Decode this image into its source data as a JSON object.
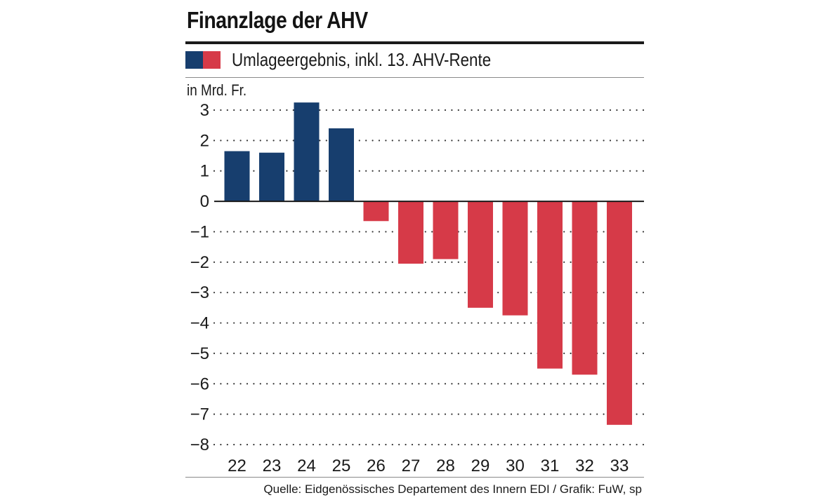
{
  "header": {
    "title": "Finanzlage der AHV"
  },
  "legend": {
    "label": "Umlageergebnis, inkl. 13. AHV-Rente"
  },
  "colors": {
    "positive": "#173e6e",
    "negative": "#d63a48",
    "grid": "#333333",
    "text": "#1a1a1a"
  },
  "chart_data": {
    "type": "bar",
    "title": "Finanzlage der AHV",
    "subtitle": "Umlageergebnis, inkl. 13. AHV-Rente",
    "ylabel": "in Mrd. Fr.",
    "xlabel": "",
    "categories": [
      "22",
      "23",
      "24",
      "25",
      "26",
      "27",
      "28",
      "29",
      "30",
      "31",
      "32",
      "33"
    ],
    "values": [
      1.65,
      1.6,
      3.25,
      2.4,
      -0.65,
      -2.05,
      -1.9,
      -3.5,
      -3.75,
      -5.5,
      -5.7,
      -7.35
    ],
    "ylim": [
      -8,
      3
    ],
    "yticks": [
      3,
      2,
      1,
      0,
      -1,
      -2,
      -3,
      -4,
      -5,
      -6,
      -7,
      -8
    ],
    "ytick_labels": [
      "3",
      "2",
      "1",
      "0",
      "−1",
      "−2",
      "−3",
      "−4",
      "−5",
      "−6",
      "−7",
      "−8"
    ],
    "grid": true,
    "legend_position": "top-left"
  },
  "footer": {
    "source": "Quelle: Eidgenössisches Departement des Innern EDI / Grafik: FuW, sp"
  }
}
